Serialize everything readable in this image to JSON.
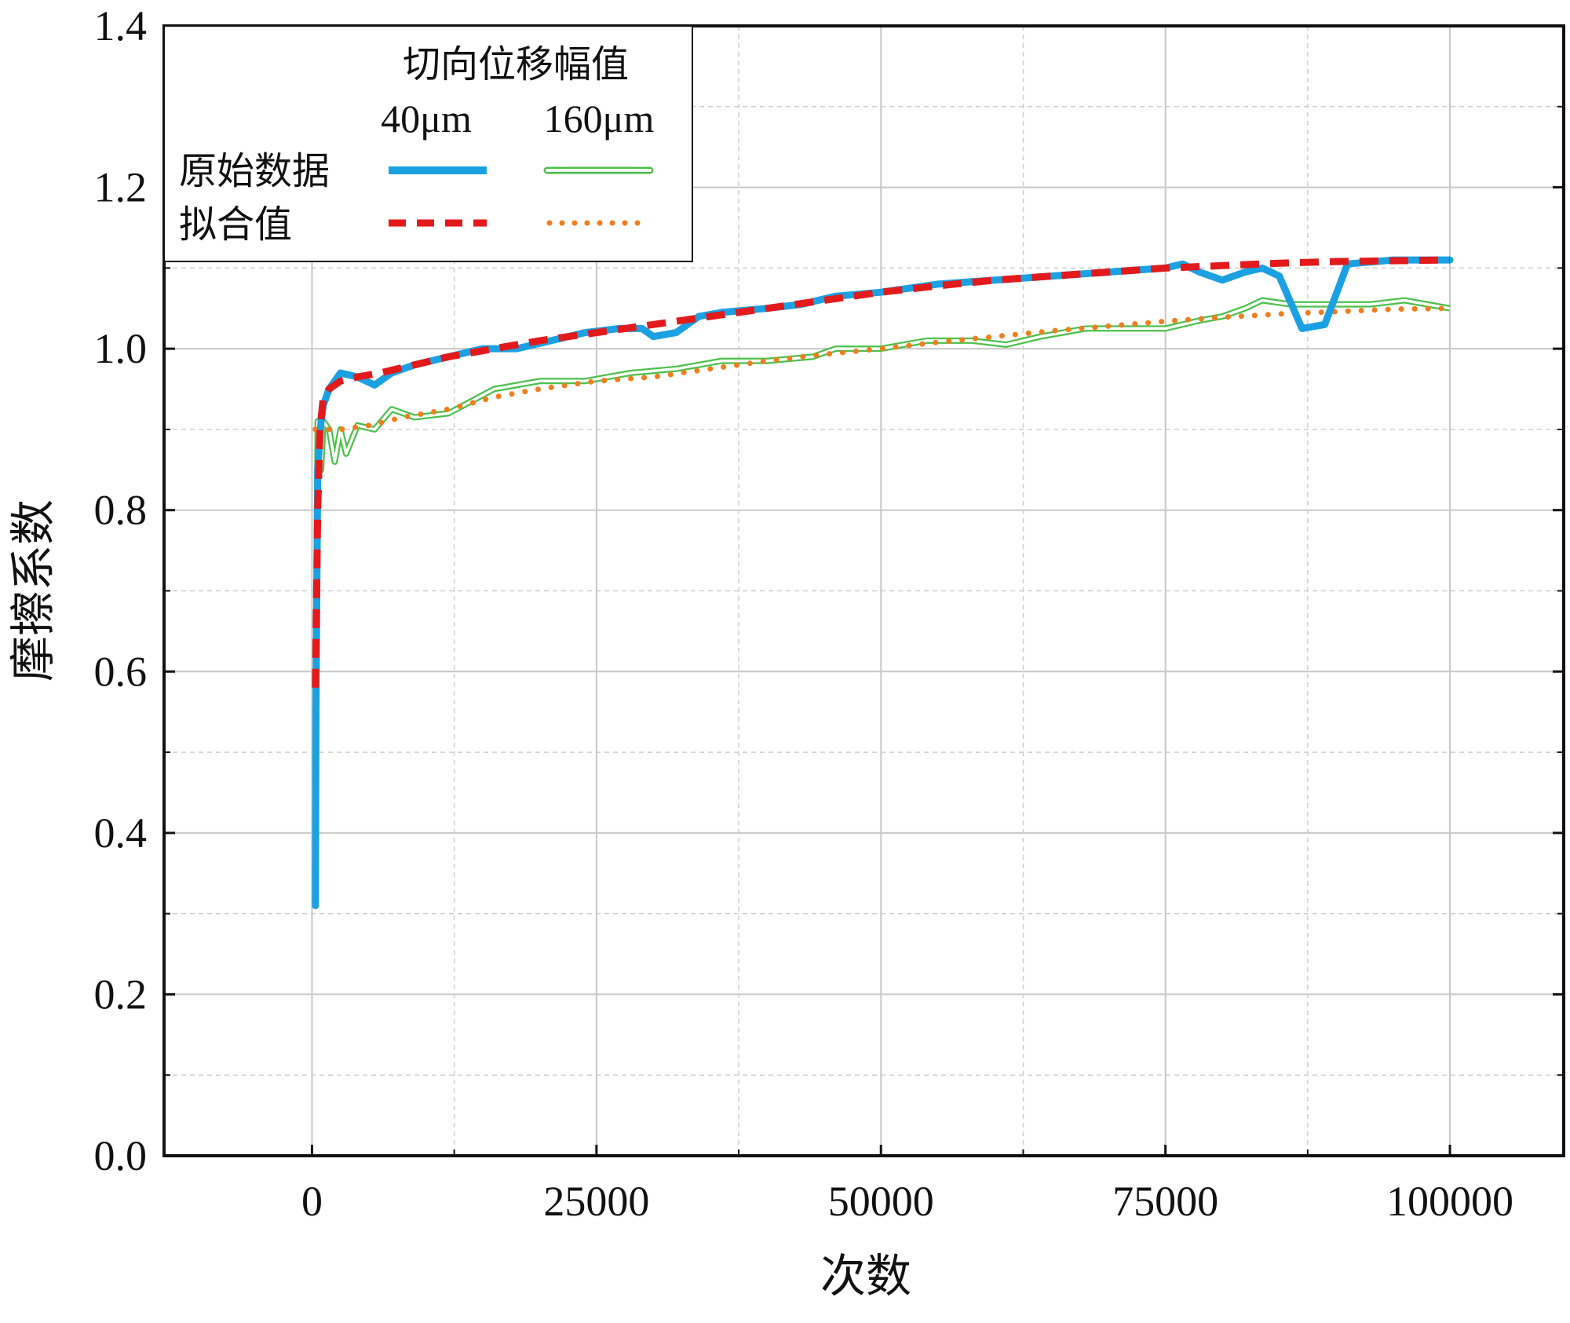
{
  "chart_data": {
    "type": "line",
    "title": "",
    "xlabel": "次数",
    "ylabel": "摩擦系数",
    "xlim": [
      -13000,
      110000
    ],
    "ylim": [
      0.0,
      1.4
    ],
    "x_ticks": [
      0,
      25000,
      50000,
      75000,
      100000
    ],
    "x_tick_labels": [
      "0",
      "25000",
      "50000",
      "75000",
      "100000"
    ],
    "y_ticks": [
      0.0,
      0.2,
      0.4,
      0.6,
      0.8,
      1.0,
      1.2,
      1.4
    ],
    "y_tick_labels": [
      "0.0",
      "0.2",
      "0.4",
      "0.6",
      "0.8",
      "1.0",
      "1.2",
      "1.4"
    ],
    "grid": true,
    "legend": {
      "position": "top-left",
      "title": "切向位移幅值",
      "columns": [
        "40μm",
        "160μm"
      ],
      "rows": [
        "原始数据",
        "拟合值"
      ]
    },
    "series": [
      {
        "name": "原始数据 40μm",
        "color": "#1BA1E2",
        "style": "solid-thick",
        "x": [
          300,
          350,
          500,
          800,
          1000,
          1500,
          2500,
          4000,
          5500,
          7000,
          9000,
          12000,
          15000,
          18000,
          21000,
          24000,
          27000,
          29000,
          30000,
          32000,
          34000,
          36000,
          40000,
          43000,
          46000,
          50000,
          55000,
          60000,
          65000,
          70000,
          75000,
          76500,
          78000,
          80000,
          82000,
          83500,
          85000,
          87000,
          89000,
          91000,
          95000,
          100000
        ],
        "y": [
          0.31,
          0.55,
          0.85,
          0.91,
          0.93,
          0.95,
          0.97,
          0.965,
          0.955,
          0.97,
          0.98,
          0.99,
          1.0,
          1.0,
          1.01,
          1.02,
          1.025,
          1.025,
          1.015,
          1.02,
          1.04,
          1.045,
          1.05,
          1.055,
          1.065,
          1.07,
          1.08,
          1.085,
          1.09,
          1.095,
          1.1,
          1.105,
          1.095,
          1.085,
          1.095,
          1.1,
          1.09,
          1.025,
          1.03,
          1.105,
          1.11,
          1.11
        ]
      },
      {
        "name": "原始数据 160μm",
        "color": "#4CC04A",
        "style": "double-line",
        "x": [
          300,
          500,
          800,
          1000,
          1500,
          2000,
          2500,
          3000,
          4000,
          5500,
          7000,
          9000,
          12000,
          14000,
          16000,
          20000,
          24000,
          28000,
          32000,
          36000,
          40000,
          44000,
          46000,
          50000,
          54000,
          58000,
          61000,
          64000,
          68000,
          72000,
          75000,
          78000,
          80000,
          82000,
          83500,
          86000,
          90000,
          93000,
          96000,
          100000
        ],
        "y": [
          0.49,
          0.91,
          0.85,
          0.91,
          0.9,
          0.86,
          0.9,
          0.87,
          0.905,
          0.9,
          0.925,
          0.915,
          0.92,
          0.935,
          0.95,
          0.96,
          0.96,
          0.97,
          0.975,
          0.985,
          0.985,
          0.99,
          1.0,
          1.0,
          1.01,
          1.01,
          1.005,
          1.015,
          1.025,
          1.025,
          1.025,
          1.035,
          1.04,
          1.05,
          1.06,
          1.055,
          1.055,
          1.055,
          1.06,
          1.05
        ]
      },
      {
        "name": "拟合值 40μm",
        "color": "#E31A1C",
        "style": "dashed-thick",
        "x": [
          300,
          500,
          700,
          1000,
          1500,
          2500,
          4000,
          6000,
          9000,
          12000,
          16000,
          20000,
          25000,
          30000,
          35000,
          40000,
          45000,
          50000,
          55000,
          60000,
          65000,
          70000,
          75000,
          80000,
          85000,
          90000,
          95000,
          100000
        ],
        "y": [
          0.58,
          0.8,
          0.9,
          0.94,
          0.95,
          0.96,
          0.965,
          0.97,
          0.98,
          0.99,
          1.0,
          1.01,
          1.02,
          1.03,
          1.04,
          1.05,
          1.06,
          1.07,
          1.078,
          1.085,
          1.09,
          1.095,
          1.1,
          1.103,
          1.106,
          1.108,
          1.109,
          1.11
        ]
      },
      {
        "name": "拟合值 160μm",
        "color": "#F07E1C",
        "style": "dotted",
        "x": [
          300,
          1000,
          2500,
          5000,
          8000,
          12000,
          16000,
          20000,
          25000,
          30000,
          35000,
          40000,
          45000,
          50000,
          55000,
          60000,
          65000,
          70000,
          75000,
          80000,
          85000,
          90000,
          95000,
          100000
        ],
        "y": [
          0.9,
          0.9,
          0.9,
          0.905,
          0.915,
          0.925,
          0.94,
          0.95,
          0.96,
          0.965,
          0.975,
          0.985,
          0.993,
          1.0,
          1.008,
          1.015,
          1.022,
          1.028,
          1.034,
          1.039,
          1.043,
          1.046,
          1.049,
          1.05
        ]
      }
    ]
  }
}
